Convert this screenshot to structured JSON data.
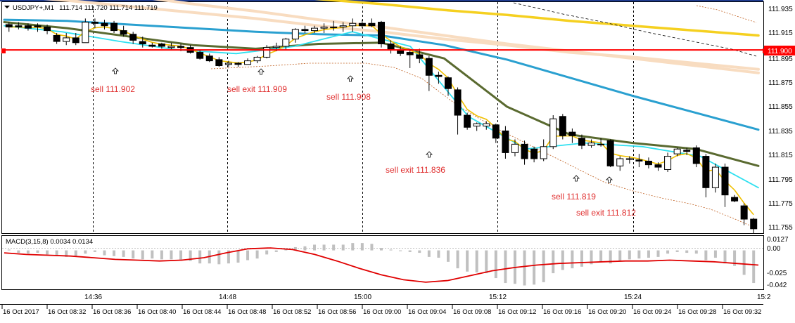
{
  "header": {
    "symbol_label": "USDJPY+,M1",
    "ohlc_label": "111.714 111.720 111.714 111.719",
    "macd_label": "MACD(3,15,8) 0.0034 0.0134"
  },
  "price_axis": {
    "ticks": [
      "111.935",
      "111.915",
      "111.895",
      "111.875",
      "111.855",
      "111.835",
      "111.815",
      "111.795",
      "111.775",
      "111.755"
    ],
    "current_price_label": "111.900"
  },
  "macd_axis": {
    "ticks": [
      "0.0127",
      "0.00",
      "-0.025",
      "-0.042"
    ]
  },
  "time_axis": {
    "upper_ticks": [
      "14:36",
      "14:48",
      "15:00",
      "15:12",
      "15:24"
    ],
    "lower_ticks": [
      "16 Oct 2017",
      "16 Oct 08:32",
      "16 Oct 08:36",
      "16 Oct 08:40",
      "16 Oct 08:44",
      "16 Oct 08:48",
      "16 Oct 08:52",
      "16 Oct 08:56",
      "16 Oct 09:00",
      "16 Oct 09:04",
      "16 Oct 09:08",
      "16 Oct 09:12",
      "16 Oct 09:16",
      "16 Oct 09:20",
      "16 Oct 09:24",
      "16 Oct 09:28",
      "16 Oct 09:32"
    ],
    "corner_label": "15:2"
  },
  "signals": [
    {
      "text": "sell 111.902"
    },
    {
      "text": "sell exit 111.909"
    },
    {
      "text": "sell 111.908"
    },
    {
      "text": "sell exit 111.836"
    },
    {
      "text": "sell 111.819"
    },
    {
      "text": "sell exit 111.812"
    }
  ],
  "colors": {
    "background": "#ffffff",
    "candle_bull": "#ffffff",
    "candle_bear": "#000000",
    "price_line": "#ff0000",
    "signal_text": "#e03030",
    "ma_blue": "#2aa0d0",
    "ma_cyan": "#30e0f0",
    "ma_olive": "#5a6a30",
    "ma_yellow": "#f0c000",
    "ma_gold": "#f5d020",
    "ma_peach": "#f8dcc0",
    "macd_signal": "#e00000",
    "macd_hist": "#c0c0c0"
  },
  "chart_data": {
    "type": "candlestick",
    "symbol": "USDJPY+",
    "timeframe": "M1",
    "price_range": [
      111.749,
      111.939
    ],
    "current_price": 111.9,
    "candles": [
      {
        "o": 111.921,
        "h": 111.923,
        "l": 111.915,
        "c": 111.919
      },
      {
        "o": 111.92,
        "h": 111.923,
        "l": 111.917,
        "c": 111.919
      },
      {
        "o": 111.92,
        "h": 111.922,
        "l": 111.916,
        "c": 111.918
      },
      {
        "o": 111.92,
        "h": 111.922,
        "l": 111.915,
        "c": 111.919
      },
      {
        "o": 111.919,
        "h": 111.921,
        "l": 111.913,
        "c": 111.916
      },
      {
        "o": 111.912,
        "h": 111.914,
        "l": 111.905,
        "c": 111.907
      },
      {
        "o": 111.907,
        "h": 111.914,
        "l": 111.904,
        "c": 111.91
      },
      {
        "o": 111.91,
        "h": 111.914,
        "l": 111.904,
        "c": 111.906
      },
      {
        "o": 111.906,
        "h": 111.926,
        "l": 111.906,
        "c": 111.923
      },
      {
        "o": 111.923,
        "h": 111.926,
        "l": 111.918,
        "c": 111.922
      },
      {
        "o": 111.922,
        "h": 111.925,
        "l": 111.917,
        "c": 111.92
      },
      {
        "o": 111.922,
        "h": 111.924,
        "l": 111.914,
        "c": 111.916
      },
      {
        "o": 111.916,
        "h": 111.92,
        "l": 111.911,
        "c": 111.913
      },
      {
        "o": 111.913,
        "h": 111.915,
        "l": 111.905,
        "c": 111.908
      },
      {
        "o": 111.907,
        "h": 111.911,
        "l": 111.902,
        "c": 111.905
      },
      {
        "o": 111.904,
        "h": 111.906,
        "l": 111.902,
        "c": 111.903
      },
      {
        "o": 111.905,
        "h": 111.906,
        "l": 111.901,
        "c": 111.903
      },
      {
        "o": 111.902,
        "h": 111.906,
        "l": 111.9,
        "c": 111.903
      },
      {
        "o": 111.903,
        "h": 111.905,
        "l": 111.899,
        "c": 111.902
      },
      {
        "o": 111.902,
        "h": 111.904,
        "l": 111.897,
        "c": 111.898
      },
      {
        "o": 111.898,
        "h": 111.9,
        "l": 111.892,
        "c": 111.893
      },
      {
        "o": 111.895,
        "h": 111.897,
        "l": 111.89,
        "c": 111.891
      },
      {
        "o": 111.892,
        "h": 111.894,
        "l": 111.886,
        "c": 111.887
      },
      {
        "o": 111.888,
        "h": 111.891,
        "l": 111.886,
        "c": 111.889
      },
      {
        "o": 111.889,
        "h": 111.89,
        "l": 111.886,
        "c": 111.888
      },
      {
        "o": 111.888,
        "h": 111.893,
        "l": 111.888,
        "c": 111.891
      },
      {
        "o": 111.891,
        "h": 111.895,
        "l": 111.889,
        "c": 111.894
      },
      {
        "o": 111.894,
        "h": 111.904,
        "l": 111.893,
        "c": 111.902
      },
      {
        "o": 111.902,
        "h": 111.906,
        "l": 111.899,
        "c": 111.903
      },
      {
        "o": 111.903,
        "h": 111.91,
        "l": 111.9,
        "c": 111.909
      },
      {
        "o": 111.909,
        "h": 111.918,
        "l": 111.906,
        "c": 111.917
      },
      {
        "o": 111.917,
        "h": 111.92,
        "l": 111.914,
        "c": 111.916
      },
      {
        "o": 111.916,
        "h": 111.92,
        "l": 111.914,
        "c": 111.918
      },
      {
        "o": 111.918,
        "h": 111.922,
        "l": 111.914,
        "c": 111.919
      },
      {
        "o": 111.919,
        "h": 111.924,
        "l": 111.916,
        "c": 111.919
      },
      {
        "o": 111.919,
        "h": 111.923,
        "l": 111.915,
        "c": 111.92
      },
      {
        "o": 111.92,
        "h": 111.926,
        "l": 111.915,
        "c": 111.922
      },
      {
        "o": 111.922,
        "h": 111.925,
        "l": 111.918,
        "c": 111.92
      },
      {
        "o": 111.922,
        "h": 111.926,
        "l": 111.919,
        "c": 111.92
      },
      {
        "o": 111.923,
        "h": 111.924,
        "l": 111.902,
        "c": 111.905
      },
      {
        "o": 111.905,
        "h": 111.908,
        "l": 111.897,
        "c": 111.9
      },
      {
        "o": 111.9,
        "h": 111.903,
        "l": 111.895,
        "c": 111.897
      },
      {
        "o": 111.898,
        "h": 111.9,
        "l": 111.885,
        "c": 111.896
      },
      {
        "o": 111.896,
        "h": 111.901,
        "l": 111.889,
        "c": 111.893
      },
      {
        "o": 111.893,
        "h": 111.895,
        "l": 111.866,
        "c": 111.879
      },
      {
        "o": 111.879,
        "h": 111.882,
        "l": 111.872,
        "c": 111.878
      },
      {
        "o": 111.877,
        "h": 111.878,
        "l": 111.862,
        "c": 111.868
      },
      {
        "o": 111.867,
        "h": 111.869,
        "l": 111.83,
        "c": 111.846
      },
      {
        "o": 111.846,
        "h": 111.848,
        "l": 111.834,
        "c": 111.836
      },
      {
        "o": 111.837,
        "h": 111.84,
        "l": 111.833,
        "c": 111.839
      },
      {
        "o": 111.837,
        "h": 111.841,
        "l": 111.834,
        "c": 111.839
      },
      {
        "o": 111.838,
        "h": 111.839,
        "l": 111.823,
        "c": 111.827
      },
      {
        "o": 111.833,
        "h": 111.837,
        "l": 111.81,
        "c": 111.815
      },
      {
        "o": 111.815,
        "h": 111.826,
        "l": 111.812,
        "c": 111.822
      },
      {
        "o": 111.822,
        "h": 111.825,
        "l": 111.805,
        "c": 111.81
      },
      {
        "o": 111.818,
        "h": 111.82,
        "l": 111.807,
        "c": 111.81
      },
      {
        "o": 111.81,
        "h": 111.826,
        "l": 111.808,
        "c": 111.82
      },
      {
        "o": 111.82,
        "h": 111.846,
        "l": 111.818,
        "c": 111.843
      },
      {
        "o": 111.845,
        "h": 111.847,
        "l": 111.826,
        "c": 111.829
      },
      {
        "o": 111.832,
        "h": 111.835,
        "l": 111.823,
        "c": 111.829
      },
      {
        "o": 111.827,
        "h": 111.83,
        "l": 111.818,
        "c": 111.821
      },
      {
        "o": 111.821,
        "h": 111.826,
        "l": 111.819,
        "c": 111.823
      },
      {
        "o": 111.822,
        "h": 111.827,
        "l": 111.82,
        "c": 111.822
      },
      {
        "o": 111.825,
        "h": 111.826,
        "l": 111.803,
        "c": 111.804
      },
      {
        "o": 111.804,
        "h": 111.812,
        "l": 111.8,
        "c": 111.81
      },
      {
        "o": 111.81,
        "h": 111.812,
        "l": 111.806,
        "c": 111.81
      },
      {
        "o": 111.809,
        "h": 111.814,
        "l": 111.803,
        "c": 111.808
      },
      {
        "o": 111.808,
        "h": 111.811,
        "l": 111.802,
        "c": 111.805
      },
      {
        "o": 111.805,
        "h": 111.807,
        "l": 111.8,
        "c": 111.803
      },
      {
        "o": 111.801,
        "h": 111.815,
        "l": 111.799,
        "c": 111.812
      },
      {
        "o": 111.814,
        "h": 111.819,
        "l": 111.812,
        "c": 111.818
      },
      {
        "o": 111.817,
        "h": 111.819,
        "l": 111.813,
        "c": 111.816
      },
      {
        "o": 111.819,
        "h": 111.821,
        "l": 111.803,
        "c": 111.806
      },
      {
        "o": 111.812,
        "h": 111.814,
        "l": 111.778,
        "c": 111.786
      },
      {
        "o": 111.786,
        "h": 111.806,
        "l": 111.782,
        "c": 111.803
      },
      {
        "o": 111.803,
        "h": 111.806,
        "l": 111.77,
        "c": 111.78
      },
      {
        "o": 111.778,
        "h": 111.78,
        "l": 111.774,
        "c": 111.775
      },
      {
        "o": 111.771,
        "h": 111.773,
        "l": 111.755,
        "c": 111.76
      },
      {
        "o": 111.76,
        "h": 111.761,
        "l": 111.748,
        "c": 111.752
      }
    ],
    "moving_averages": [
      {
        "color": "#f8dcc0",
        "values": [
          111.953,
          111.951,
          111.945,
          111.938,
          111.932,
          111.925,
          111.919,
          111.912,
          111.905,
          111.899,
          111.893,
          111.887,
          111.881
        ]
      },
      {
        "color": "#f8dcc0",
        "values": [
          111.945,
          111.941,
          111.936,
          111.931,
          111.926,
          111.92,
          111.915,
          111.909,
          111.904,
          111.898,
          111.894,
          111.889,
          111.884
        ]
      },
      {
        "color": "#f5d020",
        "values": [
          111.96,
          111.957,
          111.954,
          111.951,
          111.947,
          111.942,
          111.938,
          111.933,
          111.929,
          111.924,
          111.92,
          111.916,
          111.912
        ]
      },
      {
        "color": "#2aa0d0",
        "values": [
          111.925,
          111.924,
          111.921,
          111.918,
          111.915,
          111.913,
          111.912,
          111.904,
          111.892,
          111.877,
          111.862,
          111.848,
          111.834
        ]
      },
      {
        "color": "#5a6a30",
        "values": [
          111.923,
          111.918,
          111.911,
          111.904,
          111.901,
          111.905,
          111.906,
          111.893,
          111.853,
          111.83,
          111.823,
          111.818,
          111.804
        ]
      },
      {
        "color": "#30e0f0",
        "values": [
          111.92,
          111.915,
          111.907,
          111.9,
          111.897,
          111.903,
          111.915,
          111.903,
          111.845,
          111.818,
          111.823,
          111.82,
          111.812,
          111.786
        ]
      }
    ],
    "macd": {
      "range": [
        -0.046,
        0.016
      ],
      "histogram": [
        0.001,
        -0.003,
        -0.004,
        -0.003,
        -0.005,
        -0.006,
        -0.008,
        -0.007,
        -0.004,
        -0.002,
        -0.006,
        -0.007,
        -0.008,
        -0.01,
        -0.011,
        -0.01,
        -0.011,
        -0.011,
        -0.012,
        -0.013,
        -0.016,
        -0.016,
        -0.017,
        -0.016,
        -0.015,
        -0.012,
        -0.01,
        -0.005,
        -0.002,
        0.001,
        0.004,
        0.005,
        0.007,
        0.007,
        0.007,
        0.007,
        0.009,
        0.009,
        0.008,
        0.003,
        0.001,
        -0.001,
        -0.002,
        -0.003,
        -0.008,
        -0.009,
        -0.014,
        -0.022,
        -0.026,
        -0.027,
        -0.028,
        -0.034,
        -0.04,
        -0.041,
        -0.043,
        -0.042,
        -0.039,
        -0.028,
        -0.024,
        -0.022,
        -0.02,
        -0.017,
        -0.014,
        -0.016,
        -0.013,
        -0.011,
        -0.01,
        -0.009,
        -0.008,
        -0.004,
        -0.002,
        -0.003,
        -0.004,
        -0.012,
        -0.009,
        -0.016,
        -0.019,
        -0.03,
        -0.04
      ],
      "signal": [
        -0.003,
        -0.005,
        -0.006,
        -0.007,
        -0.009,
        -0.011,
        -0.012,
        -0.013,
        -0.012,
        -0.009,
        -0.003,
        0.002,
        0.003,
        0.001,
        -0.005,
        -0.013,
        -0.022,
        -0.03,
        -0.036,
        -0.039,
        -0.037,
        -0.031,
        -0.025,
        -0.021,
        -0.018,
        -0.016,
        -0.015,
        -0.014,
        -0.013,
        -0.013,
        -0.012,
        -0.013,
        -0.014,
        -0.016,
        -0.018
      ]
    },
    "signal_points": [
      {
        "label": "sell 111.902",
        "price": 111.902
      },
      {
        "label": "sell exit 111.909",
        "price": 111.909
      },
      {
        "label": "sell 111.908",
        "price": 111.908
      },
      {
        "label": "sell exit 111.836",
        "price": 111.836
      },
      {
        "label": "sell 111.819",
        "price": 111.819
      },
      {
        "label": "sell exit 111.812",
        "price": 111.812
      }
    ]
  }
}
